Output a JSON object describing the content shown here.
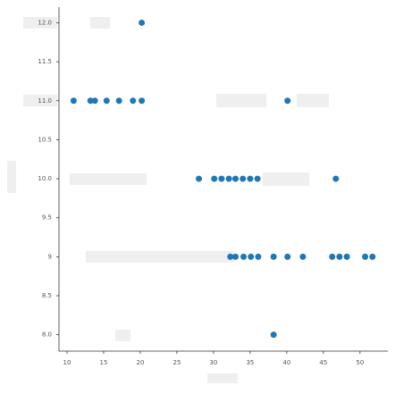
{
  "chart_data": {
    "type": "scatter",
    "x": [
      20.2,
      10.9,
      13.2,
      13.8,
      15.4,
      17.1,
      19.0,
      20.2,
      40.1,
      28.0,
      30.1,
      31.1,
      32.1,
      33.0,
      34.0,
      35.0,
      36.0,
      46.7,
      32.3,
      33.0,
      34.1,
      35.1,
      36.1,
      38.2,
      40.1,
      42.2,
      46.2,
      47.2,
      48.2,
      50.7,
      51.7,
      38.2
    ],
    "y": [
      12,
      11,
      11,
      11,
      11,
      11,
      11,
      11,
      11,
      10,
      10,
      10,
      10,
      10,
      10,
      10,
      10,
      10,
      9,
      9,
      9,
      9,
      9,
      9,
      9,
      9,
      9,
      9,
      9,
      9,
      9,
      8
    ],
    "color": "#1f77b4",
    "xlim": [
      8.9,
      53.8
    ],
    "ylim": [
      7.79,
      12.2
    ],
    "xticks": [
      10,
      15,
      20,
      25,
      30,
      35,
      40,
      45,
      50
    ],
    "yticks": [
      {
        "value": 8,
        "label": "8.0"
      },
      8.5,
      9,
      9.5,
      {
        "value": 10,
        "label": "10.0"
      },
      10.5,
      {
        "value": 11,
        "label": "11.0"
      },
      11.5,
      {
        "value": 12,
        "label": "12.0"
      }
    ]
  }
}
